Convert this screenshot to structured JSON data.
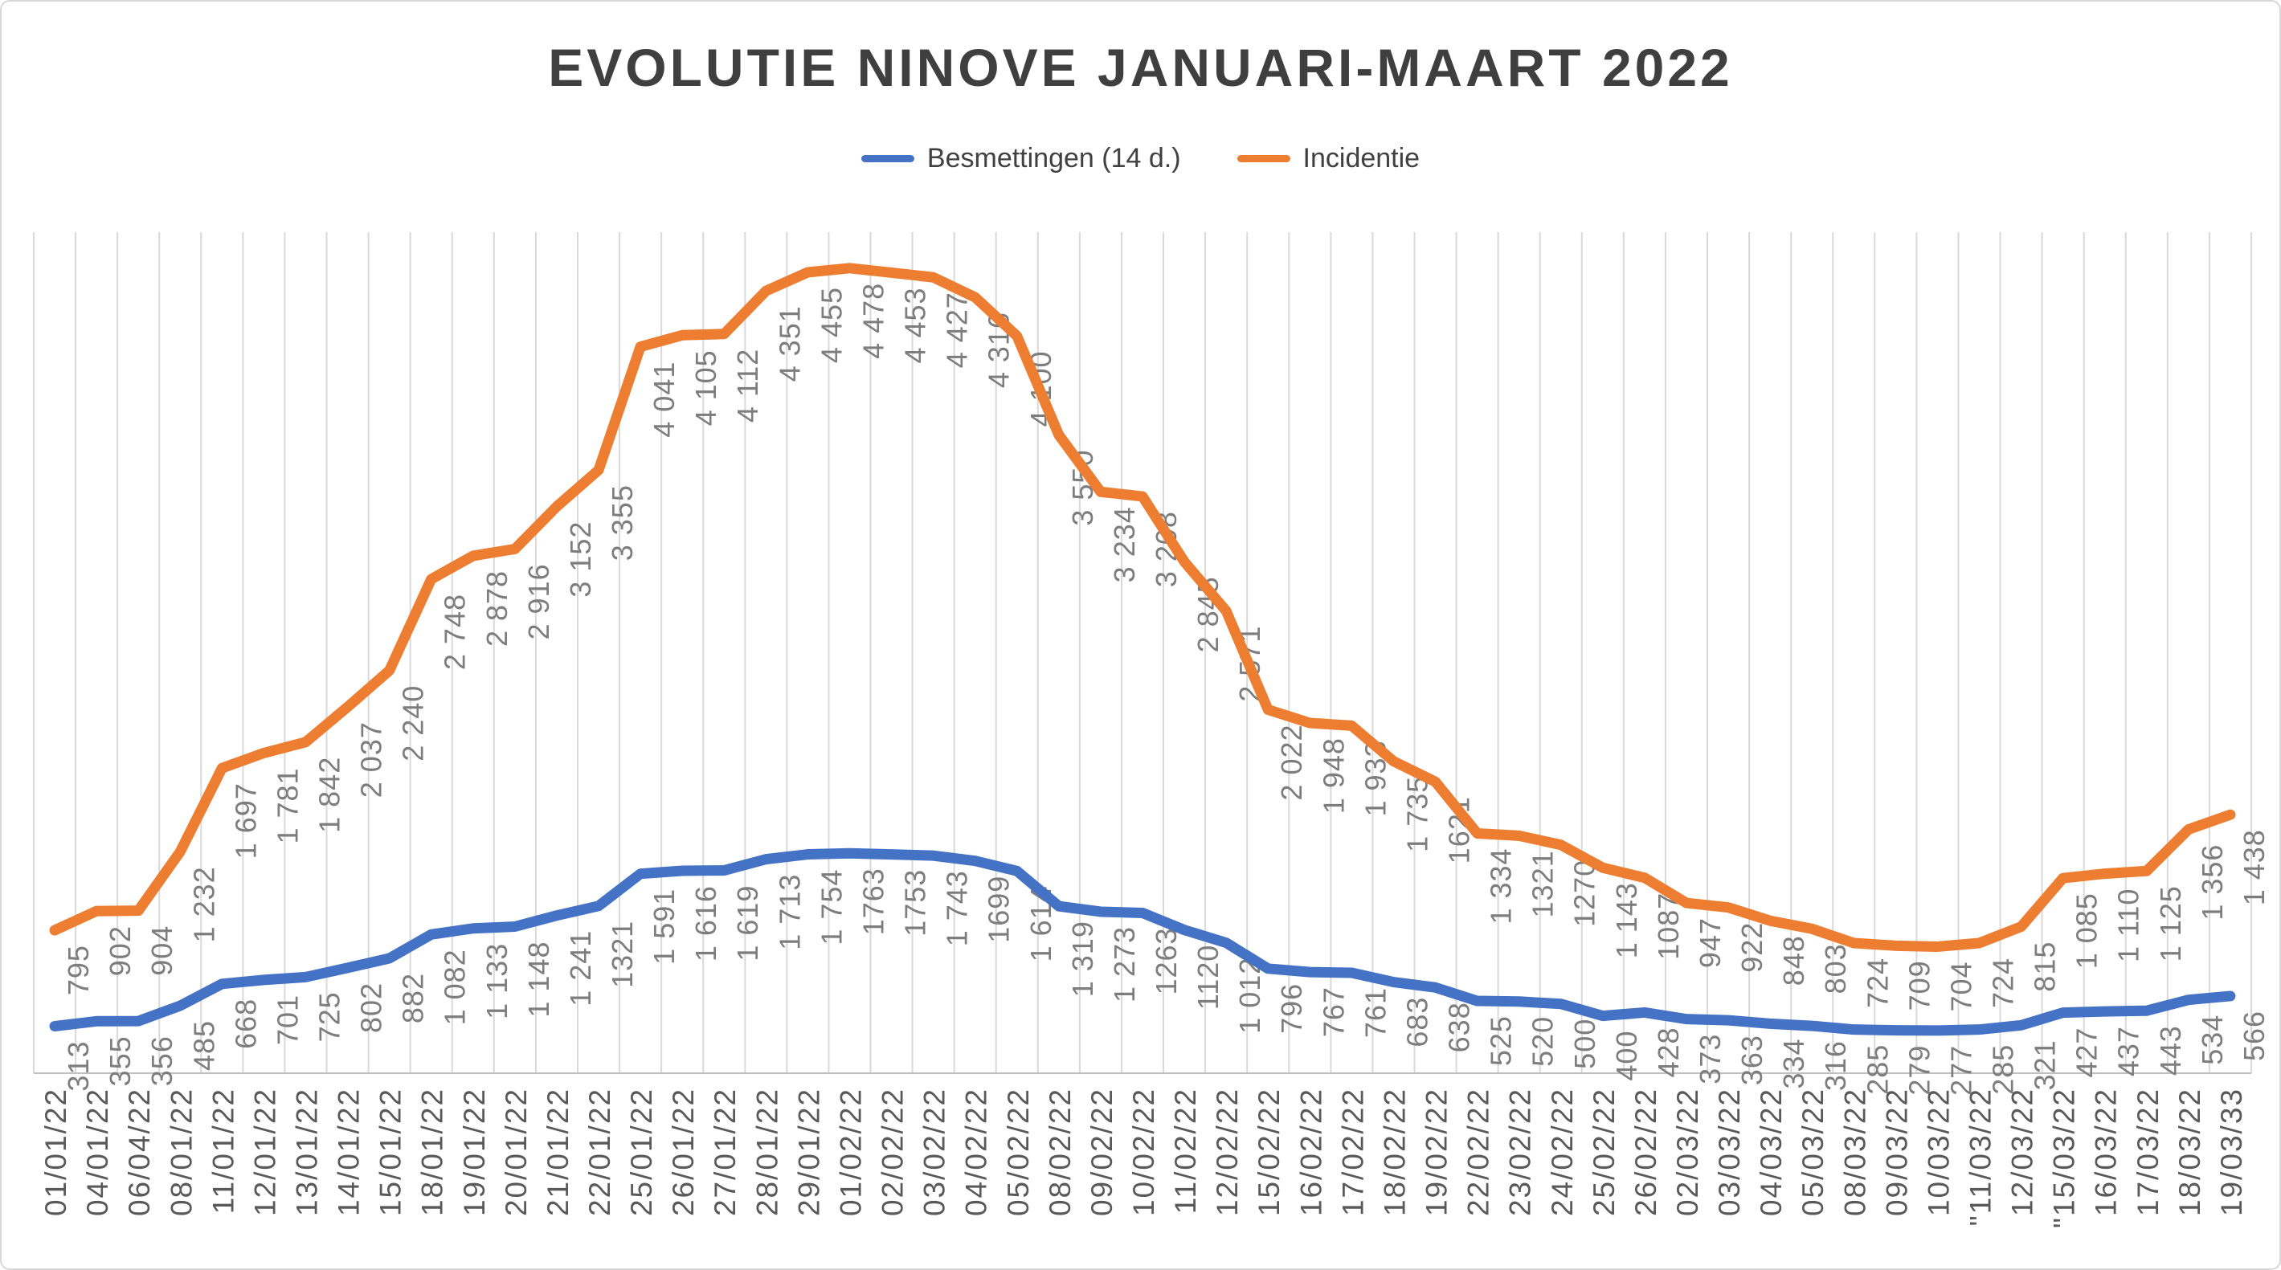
{
  "title": "EVOLUTIE NINOVE JANUARI-MAART 2022",
  "legend": [
    {
      "label": "Besmettingen (14 d.)",
      "color": "#4472C4"
    },
    {
      "label": "Incidentie",
      "color": "#ED7D31"
    }
  ],
  "colors": {
    "besmettingen_line": "#4472C4",
    "incidentie_line": "#ED7D31",
    "gridline": "#D9D9D9",
    "axis_line": "#BFBFBF",
    "data_label_text": "#7d7d7d",
    "axis_label_text": "#595959",
    "title_text": "#3f3f3f"
  },
  "chart_data": {
    "type": "line",
    "title": "EVOLUTIE NINOVE JANUARI-MAART 2022",
    "xlabel": "",
    "ylabel": "",
    "grid": "vertical-only",
    "legend_position": "top-center",
    "y_axis_labels_visible": false,
    "categories": [
      "01/01/22",
      "04/01/22",
      "06/04/22",
      "08/01/22",
      "11/01/22",
      "12/01/22",
      "13/01/22",
      "14/01/22",
      "15/01/22",
      "18/01/22",
      "19/01/22",
      "20/01/22",
      "21/01/22",
      "22/01/22",
      "25/01/22",
      "26/01/22",
      "27/01/22",
      "28/01/22",
      "29/01/22",
      "01/02/22",
      "02/02/22",
      "03/02/22",
      "04/02/22",
      "05/02/22",
      "08/02/22",
      "09/02/22",
      "10/02/22",
      "11/02/22",
      "12/02/22",
      "15/02/22",
      "16/02/22",
      "17/02/22",
      "18/02/22",
      "19/02/22",
      "22/02/22",
      "23/02/22",
      "24/02/22",
      "25/02/22",
      "26/02/22",
      "02/03/22",
      "03/03/22",
      "04/03/22",
      "05/03/22",
      "08/03/22",
      "09/03/22",
      "10/03/22",
      "\"11/03/22",
      "12/03/22",
      "\"15/03/22",
      "16/03/22",
      "17/03/22",
      "18/03/22",
      "19/03/33"
    ],
    "series": [
      {
        "name": "Besmettingen (14 d.)",
        "color": "#4472C4",
        "axis": "secondary",
        "ylim_estimate": [
          0,
          7000
        ],
        "values": [
          313,
          355,
          356,
          485,
          668,
          701,
          725,
          802,
          882,
          1082,
          1133,
          1148,
          1241,
          1321,
          1591,
          1616,
          1619,
          1713,
          1754,
          1763,
          1753,
          1743,
          1699,
          1614,
          1319,
          1273,
          1263,
          1120,
          1012,
          796,
          767,
          761,
          683,
          638,
          525,
          520,
          500,
          400,
          428,
          373,
          363,
          334,
          316,
          285,
          279,
          277,
          285,
          321,
          427,
          437,
          443,
          534,
          566
        ],
        "labels": [
          "313",
          "355",
          "356",
          "485",
          "668",
          "701",
          "725",
          "802",
          "882",
          "1 082",
          "1 133",
          "1 148",
          "1 241",
          "1321",
          "1 591",
          "1 616",
          "1 619",
          "1 713",
          "1 754",
          "1763",
          "1753",
          "1 743",
          "1699",
          "1 614",
          "1 319",
          "1 273",
          "1263",
          "1120",
          "1 012",
          "796",
          "767",
          "761",
          "683",
          "638",
          "525",
          "520",
          "500",
          "400",
          "428",
          "373",
          "363",
          "334",
          "316",
          "285",
          "279",
          "277",
          "285",
          "321",
          "427",
          "437",
          "443",
          "534",
          "566"
        ]
      },
      {
        "name": "Incidentie",
        "color": "#ED7D31",
        "axis": "primary",
        "ylim_estimate": [
          0,
          4700
        ],
        "values": [
          795,
          902,
          904,
          1232,
          1697,
          1781,
          1842,
          2037,
          2240,
          2748,
          2878,
          2916,
          3152,
          3355,
          4041,
          4105,
          4112,
          4351,
          4455,
          4478,
          4453,
          4427,
          4316,
          4100,
          3550,
          3234,
          3208,
          2845,
          2571,
          2022,
          1948,
          1933,
          1735,
          1621,
          1334,
          1321,
          1270,
          1143,
          1087,
          947,
          922,
          848,
          803,
          724,
          709,
          704,
          724,
          815,
          1085,
          1110,
          1125,
          1356,
          1438
        ],
        "labels": [
          "795",
          "902",
          "904",
          "1 232",
          "1 697",
          "1 781",
          "1 842",
          "2 037",
          "2 240",
          "2 748",
          "2 878",
          "2 916",
          "3 152",
          "3 355",
          "4 041",
          "4 105",
          "4 112",
          "4 351",
          "4 455",
          "4 478",
          "4 453",
          "4 427",
          "4 316",
          "4 100",
          "3 550",
          "3 234",
          "3 208",
          "2 845",
          "2 571",
          "2 022",
          "1 948",
          "1 933",
          "1 735",
          "1621",
          "1 334",
          "1321",
          "1270",
          "1 143",
          "1087",
          "947",
          "922",
          "848",
          "803",
          "724",
          "709",
          "704",
          "724",
          "815",
          "1 085",
          "1 110",
          "1 125",
          "1 356",
          "1 438"
        ]
      }
    ]
  }
}
